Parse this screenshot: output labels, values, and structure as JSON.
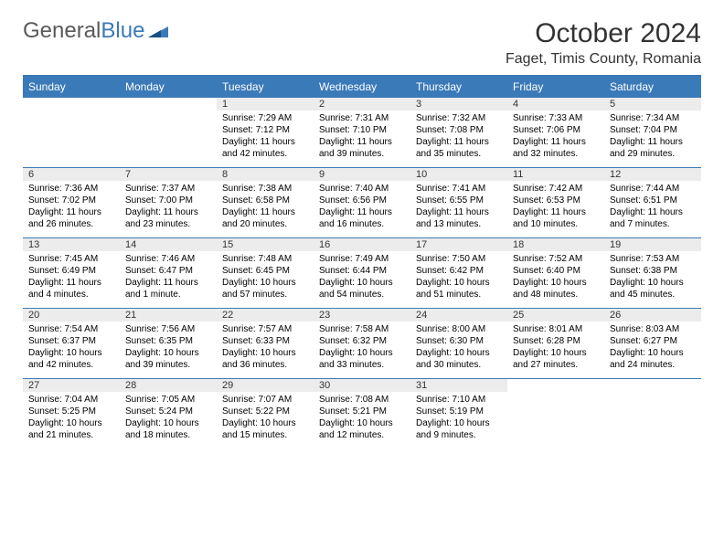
{
  "brand": {
    "part1": "General",
    "part2": "Blue"
  },
  "title": "October 2024",
  "location": "Faget, Timis County, Romania",
  "colors": {
    "header_bg": "#3b7ab8",
    "daynum_bg": "#ececec",
    "rule": "#3b7ab8",
    "text": "#333333"
  },
  "day_headers": [
    "Sunday",
    "Monday",
    "Tuesday",
    "Wednesday",
    "Thursday",
    "Friday",
    "Saturday"
  ],
  "weeks": [
    {
      "nums": [
        "",
        "",
        "1",
        "2",
        "3",
        "4",
        "5"
      ],
      "cells": [
        "",
        "",
        "Sunrise: 7:29 AM\nSunset: 7:12 PM\nDaylight: 11 hours and 42 minutes.",
        "Sunrise: 7:31 AM\nSunset: 7:10 PM\nDaylight: 11 hours and 39 minutes.",
        "Sunrise: 7:32 AM\nSunset: 7:08 PM\nDaylight: 11 hours and 35 minutes.",
        "Sunrise: 7:33 AM\nSunset: 7:06 PM\nDaylight: 11 hours and 32 minutes.",
        "Sunrise: 7:34 AM\nSunset: 7:04 PM\nDaylight: 11 hours and 29 minutes."
      ]
    },
    {
      "nums": [
        "6",
        "7",
        "8",
        "9",
        "10",
        "11",
        "12"
      ],
      "cells": [
        "Sunrise: 7:36 AM\nSunset: 7:02 PM\nDaylight: 11 hours and 26 minutes.",
        "Sunrise: 7:37 AM\nSunset: 7:00 PM\nDaylight: 11 hours and 23 minutes.",
        "Sunrise: 7:38 AM\nSunset: 6:58 PM\nDaylight: 11 hours and 20 minutes.",
        "Sunrise: 7:40 AM\nSunset: 6:56 PM\nDaylight: 11 hours and 16 minutes.",
        "Sunrise: 7:41 AM\nSunset: 6:55 PM\nDaylight: 11 hours and 13 minutes.",
        "Sunrise: 7:42 AM\nSunset: 6:53 PM\nDaylight: 11 hours and 10 minutes.",
        "Sunrise: 7:44 AM\nSunset: 6:51 PM\nDaylight: 11 hours and 7 minutes."
      ]
    },
    {
      "nums": [
        "13",
        "14",
        "15",
        "16",
        "17",
        "18",
        "19"
      ],
      "cells": [
        "Sunrise: 7:45 AM\nSunset: 6:49 PM\nDaylight: 11 hours and 4 minutes.",
        "Sunrise: 7:46 AM\nSunset: 6:47 PM\nDaylight: 11 hours and 1 minute.",
        "Sunrise: 7:48 AM\nSunset: 6:45 PM\nDaylight: 10 hours and 57 minutes.",
        "Sunrise: 7:49 AM\nSunset: 6:44 PM\nDaylight: 10 hours and 54 minutes.",
        "Sunrise: 7:50 AM\nSunset: 6:42 PM\nDaylight: 10 hours and 51 minutes.",
        "Sunrise: 7:52 AM\nSunset: 6:40 PM\nDaylight: 10 hours and 48 minutes.",
        "Sunrise: 7:53 AM\nSunset: 6:38 PM\nDaylight: 10 hours and 45 minutes."
      ]
    },
    {
      "nums": [
        "20",
        "21",
        "22",
        "23",
        "24",
        "25",
        "26"
      ],
      "cells": [
        "Sunrise: 7:54 AM\nSunset: 6:37 PM\nDaylight: 10 hours and 42 minutes.",
        "Sunrise: 7:56 AM\nSunset: 6:35 PM\nDaylight: 10 hours and 39 minutes.",
        "Sunrise: 7:57 AM\nSunset: 6:33 PM\nDaylight: 10 hours and 36 minutes.",
        "Sunrise: 7:58 AM\nSunset: 6:32 PM\nDaylight: 10 hours and 33 minutes.",
        "Sunrise: 8:00 AM\nSunset: 6:30 PM\nDaylight: 10 hours and 30 minutes.",
        "Sunrise: 8:01 AM\nSunset: 6:28 PM\nDaylight: 10 hours and 27 minutes.",
        "Sunrise: 8:03 AM\nSunset: 6:27 PM\nDaylight: 10 hours and 24 minutes."
      ]
    },
    {
      "nums": [
        "27",
        "28",
        "29",
        "30",
        "31",
        "",
        ""
      ],
      "cells": [
        "Sunrise: 7:04 AM\nSunset: 5:25 PM\nDaylight: 10 hours and 21 minutes.",
        "Sunrise: 7:05 AM\nSunset: 5:24 PM\nDaylight: 10 hours and 18 minutes.",
        "Sunrise: 7:07 AM\nSunset: 5:22 PM\nDaylight: 10 hours and 15 minutes.",
        "Sunrise: 7:08 AM\nSunset: 5:21 PM\nDaylight: 10 hours and 12 minutes.",
        "Sunrise: 7:10 AM\nSunset: 5:19 PM\nDaylight: 10 hours and 9 minutes.",
        "",
        ""
      ]
    }
  ]
}
